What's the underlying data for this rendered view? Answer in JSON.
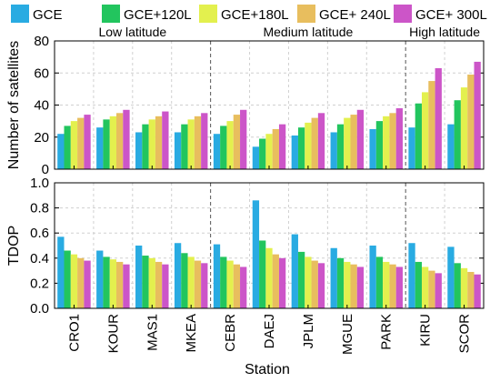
{
  "chart_data": {
    "type": "bar",
    "legend": {
      "placement": "top",
      "entries": [
        {
          "label": "GCE",
          "color": "#29ABE2"
        },
        {
          "label": "GCE+120L",
          "color": "#22C55E"
        },
        {
          "label": "GCE+180L",
          "color": "#E3F04E"
        },
        {
          "label": "GCE+ 240L",
          "color": "#E8BE5E"
        },
        {
          "label": "GCE+ 300L",
          "color": "#CC55C8"
        }
      ]
    },
    "categories": [
      "CRO1",
      "KOUR",
      "MAS1",
      "MKEA",
      "CEBR",
      "DAEJ",
      "JPLM",
      "MGUE",
      "PARK",
      "KIRU",
      "SCOR"
    ],
    "region_labels": [
      "Low latitude",
      "Medium latitude",
      "High latitude"
    ],
    "grid": true,
    "xlabel": "Station",
    "panels": [
      {
        "ylabel": "Number of satellites",
        "ylim": [
          0,
          80
        ],
        "yticks": [
          "0",
          "20",
          "40",
          "60",
          "80"
        ],
        "series": [
          {
            "name": "GCE",
            "values": [
              22,
              26,
              23,
              23,
              22,
              14,
              21,
              23,
              25,
              26,
              28
            ]
          },
          {
            "name": "GCE+120L",
            "values": [
              27,
              31,
              28,
              28,
              27,
              19,
              26,
              28,
              30,
              41,
              43
            ]
          },
          {
            "name": "GCE+180L",
            "values": [
              30,
              33,
              31,
              31,
              30,
              22,
              29,
              32,
              33,
              48,
              51
            ]
          },
          {
            "name": "GCE+ 240L",
            "values": [
              32,
              35,
              33,
              33,
              34,
              25,
              32,
              34,
              35,
              55,
              59
            ]
          },
          {
            "name": "GCE+ 300L",
            "values": [
              34,
              37,
              36,
              35,
              37,
              28,
              35,
              37,
              38,
              63,
              67
            ]
          }
        ]
      },
      {
        "ylabel": "TDOP",
        "ylim": [
          0,
          1.0
        ],
        "yticks": [
          "0.0",
          "0.2",
          "0.4",
          "0.6",
          "0.8",
          "1.0"
        ],
        "series": [
          {
            "name": "GCE",
            "values": [
              0.57,
              0.46,
              0.5,
              0.52,
              0.51,
              0.86,
              0.59,
              0.48,
              0.5,
              0.52,
              0.49
            ]
          },
          {
            "name": "GCE+120L",
            "values": [
              0.46,
              0.41,
              0.42,
              0.44,
              0.41,
              0.54,
              0.45,
              0.4,
              0.41,
              0.37,
              0.36
            ]
          },
          {
            "name": "GCE+180L",
            "values": [
              0.43,
              0.39,
              0.4,
              0.41,
              0.38,
              0.48,
              0.41,
              0.37,
              0.37,
              0.33,
              0.32
            ]
          },
          {
            "name": "GCE+ 240L",
            "values": [
              0.4,
              0.37,
              0.37,
              0.38,
              0.35,
              0.43,
              0.38,
              0.35,
              0.35,
              0.3,
              0.29
            ]
          },
          {
            "name": "GCE+ 300L",
            "values": [
              0.38,
              0.35,
              0.35,
              0.36,
              0.33,
              0.4,
              0.36,
              0.33,
              0.33,
              0.28,
              0.27
            ]
          }
        ]
      }
    ]
  }
}
